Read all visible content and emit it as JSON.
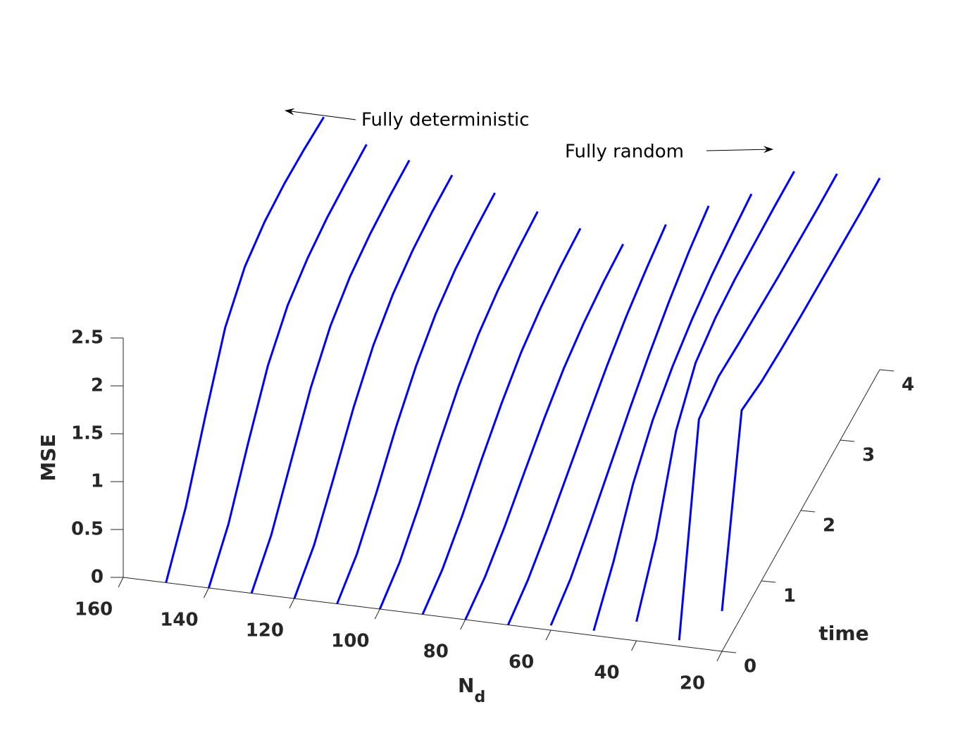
{
  "chart_data": {
    "type": "line3d",
    "xlabel": "N",
    "xlabel_sub": "d",
    "ylabel": "time",
    "zlabel": "MSE",
    "annotations": [
      "Fully deterministic",
      "Fully random"
    ],
    "xlim": [
      20,
      160
    ],
    "xticks": [
      20,
      40,
      60,
      80,
      100,
      120,
      140,
      160
    ],
    "ylim": [
      0,
      4
    ],
    "yticks": [
      0,
      1,
      2,
      3,
      4
    ],
    "zlim": [
      0,
      2.5
    ],
    "zticks": [
      0,
      0.5,
      1,
      1.5,
      2,
      2.5
    ],
    "x": [
      0,
      0.5,
      1,
      1.5,
      2,
      2.5,
      3,
      3.5,
      4
    ],
    "series": [
      {
        "nd": 150,
        "color": "#0000ff",
        "values": [
          0,
          0.42,
          1.01,
          1.56,
          1.83,
          1.93,
          1.96,
          1.95,
          1.92
        ]
      },
      {
        "nd": 140,
        "color": "#0000ff",
        "values": [
          0,
          0.3,
          0.78,
          1.22,
          1.48,
          1.6,
          1.66,
          1.68,
          1.69
        ]
      },
      {
        "nd": 130,
        "color": "#0000ff",
        "values": [
          0,
          0.24,
          0.64,
          1.04,
          1.32,
          1.47,
          1.54,
          1.57,
          1.58
        ]
      },
      {
        "nd": 120,
        "color": "#0000ff",
        "values": [
          0,
          0.19,
          0.53,
          0.89,
          1.17,
          1.34,
          1.43,
          1.47,
          1.48
        ]
      },
      {
        "nd": 110,
        "color": "#0000ff",
        "values": [
          0,
          0.15,
          0.43,
          0.75,
          1.01,
          1.19,
          1.29,
          1.33,
          1.35
        ]
      },
      {
        "nd": 100,
        "color": "#0000ff",
        "values": [
          0,
          0.12,
          0.35,
          0.62,
          0.86,
          1.03,
          1.13,
          1.18,
          1.21
        ]
      },
      {
        "nd": 90,
        "color": "#0000ff",
        "values": [
          0,
          0.1,
          0.29,
          0.52,
          0.73,
          0.9,
          1.0,
          1.06,
          1.09
        ]
      },
      {
        "nd": 80,
        "color": "#0000ff",
        "values": [
          0,
          0.08,
          0.24,
          0.44,
          0.63,
          0.79,
          0.89,
          0.95,
          0.98
        ]
      },
      {
        "nd": 70,
        "color": "#0000ff",
        "values": [
          0,
          0.1,
          0.27,
          0.47,
          0.67,
          0.86,
          1.02,
          1.14,
          1.24
        ]
      },
      {
        "nd": 60,
        "color": "#0000ff",
        "values": [
          0.05,
          0.17,
          0.38,
          0.61,
          0.84,
          1.05,
          1.23,
          1.38,
          1.49
        ]
      },
      {
        "nd": 50,
        "color": "#0000ff",
        "values": [
          0.05,
          0.4,
          0.85,
          1.15,
          1.34,
          1.47,
          1.56,
          1.62,
          1.67
        ]
      },
      {
        "nd": 40,
        "color": "#0000ff",
        "values": [
          0.2,
          0.7,
          1.45,
          1.8,
          1.9,
          1.94,
          1.95,
          1.96,
          1.96
        ]
      },
      {
        "nd": 30,
        "color": "#0000ff",
        "values": [
          0.06,
          2.0,
          2.08,
          2.05,
          2.03,
          2.01,
          2.0,
          1.99,
          1.99
        ]
      },
      {
        "nd": 20,
        "color": "#0000ff",
        "values": [
          0.42,
          2.15,
          2.08,
          2.05,
          2.03,
          2.02,
          2.01,
          2.0,
          2.0
        ]
      }
    ]
  }
}
